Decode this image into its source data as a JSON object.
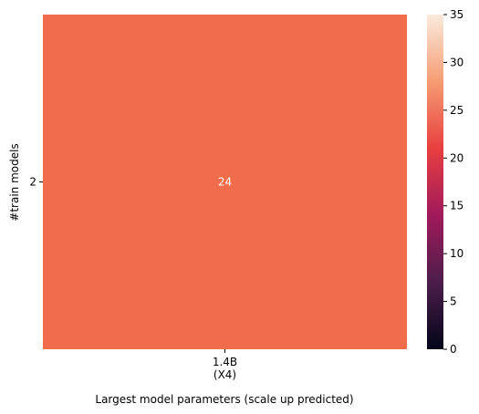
{
  "chart_data": {
    "type": "heatmap",
    "x_categories": [
      [
        "1.4B",
        "(X4)"
      ]
    ],
    "y_categories": [
      "2"
    ],
    "values": [
      [
        24
      ]
    ],
    "cell_labels": [
      [
        "24"
      ]
    ],
    "xlabel": "Largest model parameters (scale up predicted)",
    "ylabel": "#train models",
    "colorbar": {
      "vmin": 0,
      "vmax": 35,
      "ticks": [
        0,
        5,
        10,
        15,
        20,
        25,
        30,
        35
      ],
      "colormap": "rocket",
      "stops": [
        "#03051a",
        "#4c1d4b",
        "#a11a5b",
        "#e83f3f",
        "#f69c73",
        "#faebdd"
      ]
    },
    "cell_color": "#f06c4b",
    "grid": false
  }
}
